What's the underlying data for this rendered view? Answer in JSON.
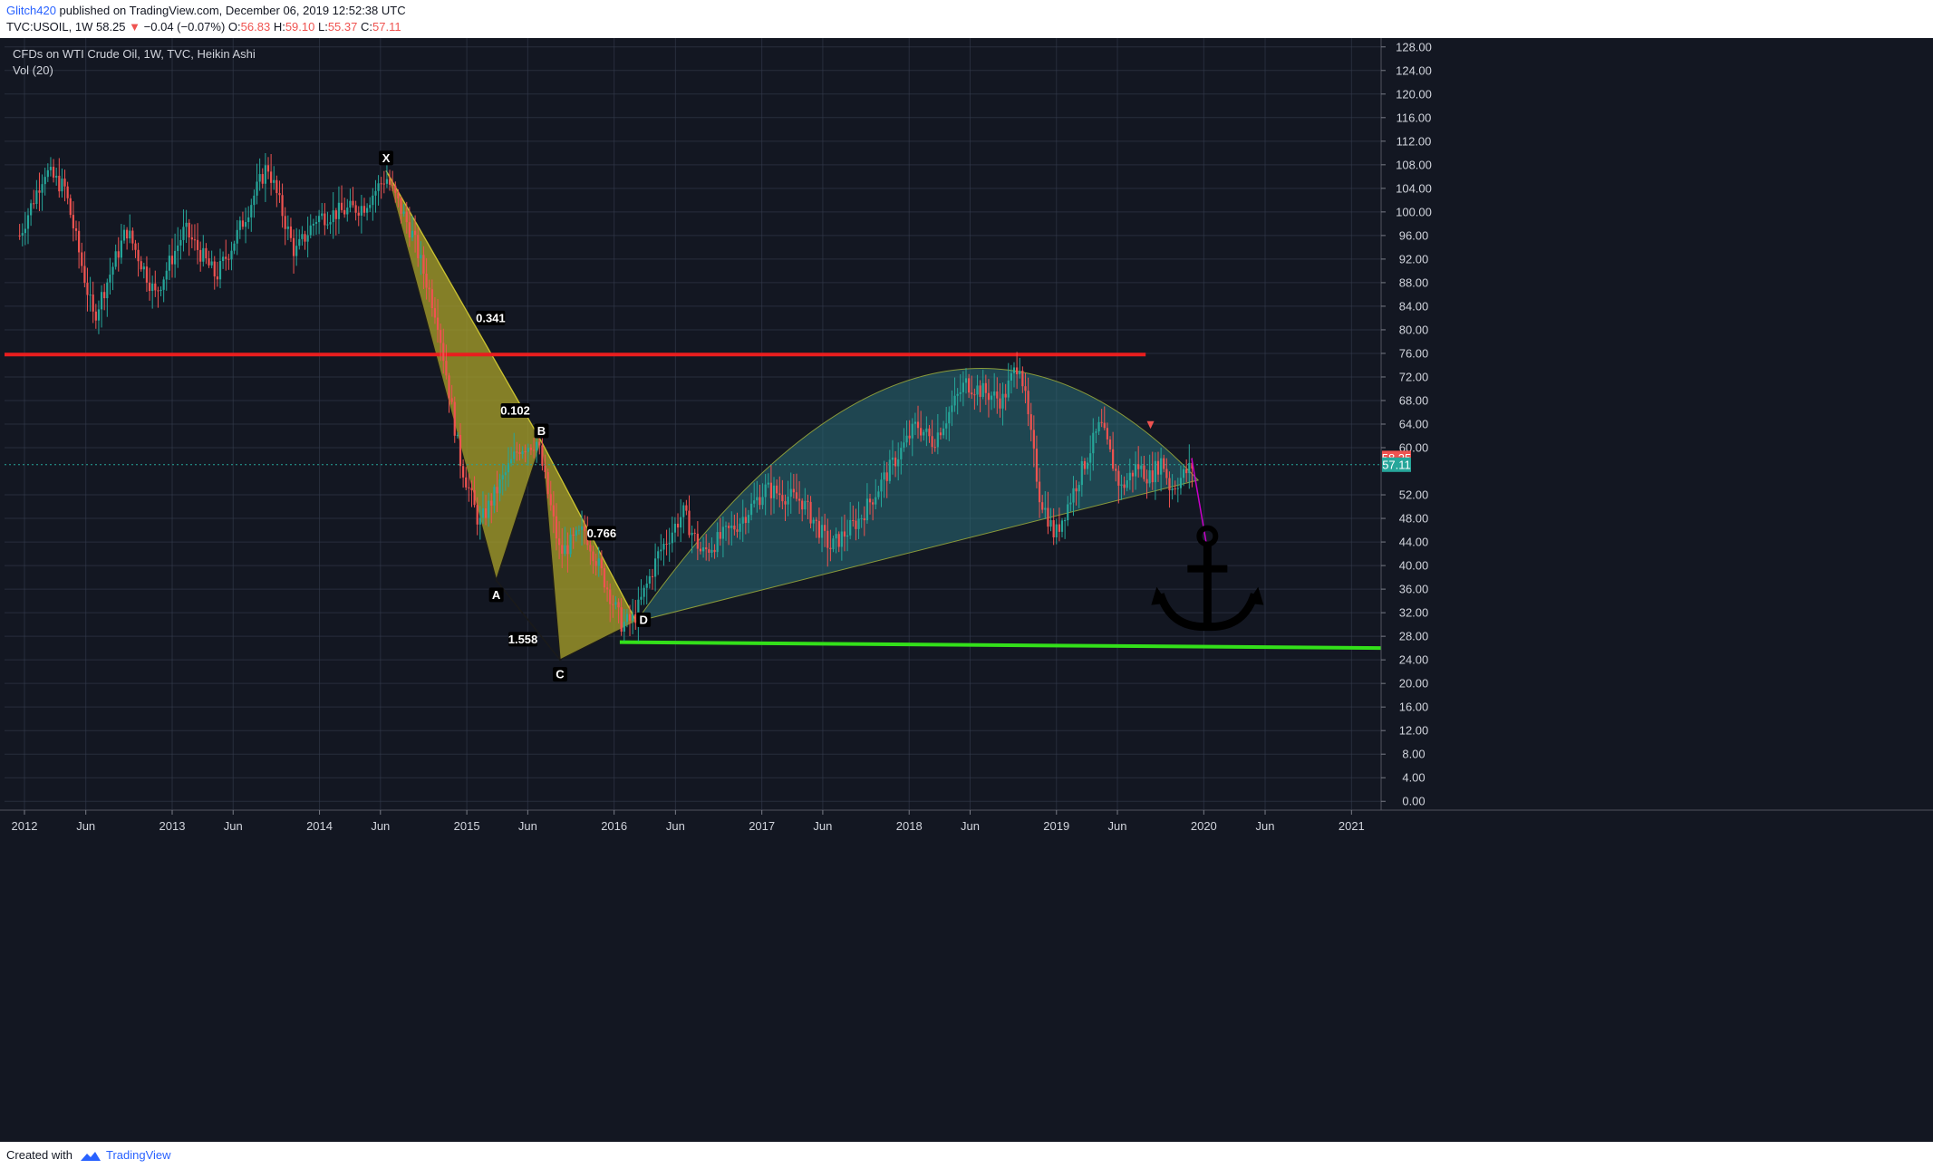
{
  "header": {
    "author": "Glitch420",
    "published_text": "published on TradingView.com, December 06, 2019 12:52:38 UTC",
    "symbol": "TVC:USOIL, 1W",
    "last": "58.25",
    "arrow": "▼",
    "change": "−0.04 (−0.07%)",
    "o_label": "O:",
    "o": "56.83",
    "h_label": "H:",
    "h": "59.10",
    "l_label": "L:",
    "l": "55.37",
    "c_label": "C:",
    "c": "57.11"
  },
  "legend": {
    "title": "CFDs on WTI Crude Oil, 1W, TVC, Heikin Ashi",
    "volume": "Vol (20)"
  },
  "footer": {
    "created_with": "Created with",
    "brand": "TradingView"
  },
  "colors": {
    "background": "#131722",
    "grid": "#363c4e",
    "up": "#26a69a",
    "down": "#ef5350",
    "resistance": "#e91e1e",
    "support": "#33e01a",
    "pattern_fill": "#b0a82a",
    "arc_fill": "#2a6e78",
    "arrow": "#c800c8",
    "last_price": "#ef5350",
    "close_price": "#26a69a"
  },
  "chart_data": {
    "type": "candlestick",
    "style": "Heikin Ashi",
    "ylim": [
      -1.5,
      129.5
    ],
    "xlim": [
      "2011-12-20",
      "2021-12-31"
    ],
    "price_ticks": [
      "128.00",
      "124.00",
      "120.00",
      "116.00",
      "112.00",
      "108.00",
      "104.00",
      "100.00",
      "96.00",
      "92.00",
      "88.00",
      "84.00",
      "80.00",
      "76.00",
      "72.00",
      "68.00",
      "64.00",
      "60.00",
      "52.00",
      "48.00",
      "44.00",
      "40.00",
      "36.00",
      "32.00",
      "28.00",
      "24.00",
      "20.00",
      "16.00",
      "12.00",
      "8.00",
      "4.00",
      "0.00"
    ],
    "time_ticks": [
      {
        "label": "2012",
        "date": "2012-01-01"
      },
      {
        "label": "Jun",
        "date": "2012-06-01"
      },
      {
        "label": "2013",
        "date": "2013-01-01"
      },
      {
        "label": "Jun",
        "date": "2013-06-01"
      },
      {
        "label": "2014",
        "date": "2014-01-01"
      },
      {
        "label": "Jun",
        "date": "2014-06-01"
      },
      {
        "label": "2015",
        "date": "2015-01-01"
      },
      {
        "label": "Jun",
        "date": "2015-06-01"
      },
      {
        "label": "2016",
        "date": "2016-01-01"
      },
      {
        "label": "Jun",
        "date": "2016-06-01"
      },
      {
        "label": "2017",
        "date": "2017-01-01"
      },
      {
        "label": "Jun",
        "date": "2017-06-01"
      },
      {
        "label": "2018",
        "date": "2018-01-01"
      },
      {
        "label": "Jun",
        "date": "2018-06-01"
      },
      {
        "label": "2019",
        "date": "2019-01-01"
      },
      {
        "label": "Jun",
        "date": "2019-06-01"
      },
      {
        "label": "2020",
        "date": "2020-01-01"
      },
      {
        "label": "Jun",
        "date": "2020-06-01"
      },
      {
        "label": "2021",
        "date": "2021-01-01"
      }
    ],
    "price_path": [
      [
        "2011-12-20",
        96
      ],
      [
        "2012-02-20",
        107
      ],
      [
        "2012-04-10",
        104
      ],
      [
        "2012-06-20",
        82
      ],
      [
        "2012-09-10",
        97
      ],
      [
        "2012-11-20",
        86
      ],
      [
        "2013-02-01",
        97
      ],
      [
        "2013-04-20",
        89
      ],
      [
        "2013-06-10",
        96
      ],
      [
        "2013-08-25",
        108
      ],
      [
        "2013-11-01",
        93
      ],
      [
        "2013-12-25",
        99
      ],
      [
        "2014-02-20",
        100
      ],
      [
        "2014-04-20",
        101
      ],
      [
        "2014-06-15",
        106
      ],
      [
        "2014-08-20",
        96
      ],
      [
        "2014-10-20",
        82
      ],
      [
        "2014-12-15",
        58
      ],
      [
        "2015-02-01",
        47
      ],
      [
        "2015-05-10",
        60
      ],
      [
        "2015-06-25",
        61
      ],
      [
        "2015-08-20",
        42
      ],
      [
        "2015-10-20",
        46
      ],
      [
        "2016-01-20",
        30
      ],
      [
        "2016-02-20",
        31
      ],
      [
        "2016-04-20",
        42
      ],
      [
        "2016-06-20",
        49
      ],
      [
        "2016-08-05",
        42
      ],
      [
        "2016-11-01",
        47
      ],
      [
        "2017-01-10",
        53
      ],
      [
        "2017-04-10",
        51
      ],
      [
        "2017-06-20",
        43
      ],
      [
        "2017-09-01",
        48
      ],
      [
        "2018-01-20",
        64
      ],
      [
        "2018-03-01",
        61
      ],
      [
        "2018-05-20",
        71
      ],
      [
        "2018-08-20",
        68
      ],
      [
        "2018-10-01",
        75
      ],
      [
        "2018-11-20",
        52
      ],
      [
        "2018-12-28",
        45
      ],
      [
        "2019-02-20",
        54
      ],
      [
        "2019-04-20",
        64
      ],
      [
        "2019-06-10",
        53
      ],
      [
        "2019-07-20",
        57
      ],
      [
        "2019-08-20",
        55
      ],
      [
        "2019-09-20",
        58
      ],
      [
        "2019-10-10",
        53
      ],
      [
        "2019-12-06",
        57.1
      ]
    ],
    "last_price": 58.25,
    "close_price": 57.11,
    "resistance_level": 75.8,
    "support_level": 26.5,
    "harmonic_pattern": {
      "points": [
        {
          "label": "X",
          "date": "2014-06-15",
          "price": 107
        },
        {
          "label": "A",
          "date": "2015-03-15",
          "price": 37.5
        },
        {
          "label": "B",
          "date": "2015-07-05",
          "price": 61
        },
        {
          "label": "C",
          "date": "2015-08-20",
          "price": 24
        },
        {
          "label": "D",
          "date": "2016-02-25",
          "price": 30.5
        }
      ],
      "ratios": [
        {
          "value": "0.341",
          "date": "2015-03-01",
          "price": 82
        },
        {
          "value": "0.102",
          "date": "2015-05-01",
          "price": 66.3
        },
        {
          "value": "0.766",
          "date": "2015-12-01",
          "price": 45.5
        },
        {
          "value": "1.558",
          "date": "2015-05-20",
          "price": 27.5
        }
      ]
    },
    "price_labels": {
      "last": "58.25",
      "close": "57.11"
    }
  }
}
